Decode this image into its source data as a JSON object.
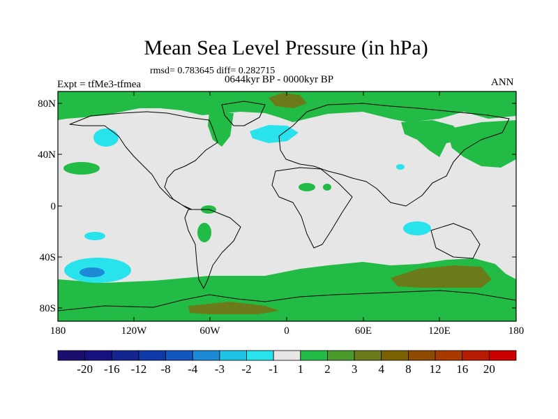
{
  "title": "Mean Sea Level Pressure (in hPa)",
  "stats": "rmsd= 0.783645  diff= 0.282715",
  "period": "0644kyr BP - 0000kyr BP",
  "experiment": "Expt = tfMe3-tfmea",
  "season": "ANN",
  "lat_labels": [
    "80N",
    "40N",
    "0",
    "40S",
    "80S"
  ],
  "lon_labels": [
    "180",
    "120W",
    "60W",
    "0",
    "60E",
    "120E",
    "180"
  ],
  "colorbar": {
    "labels": [
      "-20",
      "-16",
      "-12",
      "-8",
      "-4",
      "-3",
      "-2",
      "-1",
      "1",
      "2",
      "3",
      "4",
      "8",
      "12",
      "16",
      "20"
    ],
    "colors": [
      "#1a0f6e",
      "#17127f",
      "#14258f",
      "#0d3aa8",
      "#1456c0",
      "#1c8ad6",
      "#1ec3e6",
      "#28e2ec",
      "#e6e6e6",
      "#22bb45",
      "#4b9a2c",
      "#6b7b1a",
      "#7a6000",
      "#8e4a00",
      "#a83a00",
      "#b81c00",
      "#cc0000"
    ]
  },
  "map_colors": {
    "background": "#e6e6e6",
    "green": "#22bb45",
    "olive": "#6b7b1a",
    "cyan": "#28e2ec",
    "blue": "#1c8ad6"
  }
}
